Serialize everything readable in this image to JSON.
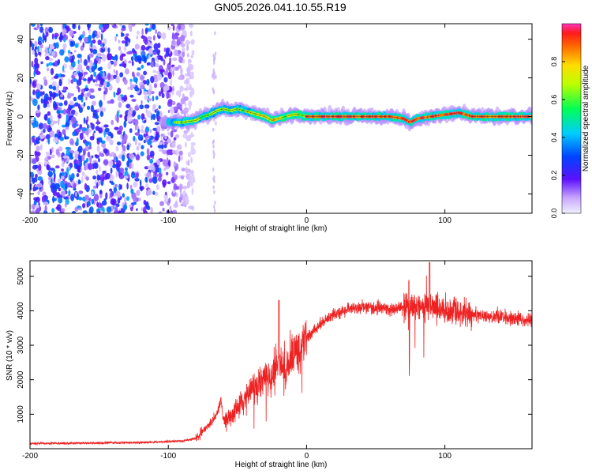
{
  "title": "GN05.2026.041.10.55.R19",
  "colors": {
    "signal_line": "#ee2222",
    "frame": "#000000",
    "background": "#ffffff"
  },
  "chart_data": [
    {
      "type": "heatmap",
      "title": "GN05.2026.041.10.55.R19",
      "xlabel": "Height of straight line (km)",
      "ylabel": "Frequency (Hz)",
      "xlim": [
        -200,
        163
      ],
      "ylim": [
        -50,
        48
      ],
      "xticks": [
        -200,
        -100,
        0,
        100
      ],
      "yticks": [
        -40,
        -20,
        0,
        20,
        40
      ],
      "colorbar": {
        "label": "Normalized spectral amplitude",
        "range": [
          0,
          1
        ],
        "ticks": [
          0.0,
          0.2,
          0.4,
          0.6,
          0.8
        ]
      },
      "noise_region_x": [
        -200,
        -82
      ],
      "frequency_track": {
        "x": [
          -100,
          -90,
          -80,
          -75,
          -70,
          -65,
          -60,
          -55,
          -50,
          -45,
          -40,
          -35,
          -30,
          -25,
          -20,
          -15,
          -10,
          -5,
          0,
          20,
          40,
          60,
          70,
          75,
          80,
          90,
          100,
          110,
          120,
          140,
          163
        ],
        "freq": [
          -3,
          -3,
          -2,
          0,
          1,
          3,
          4,
          3,
          4,
          3,
          2,
          1,
          0,
          -2,
          -1,
          0,
          1,
          1,
          0,
          0,
          0,
          0,
          -1,
          -3,
          -1,
          0,
          1,
          2,
          0,
          0,
          0
        ]
      }
    },
    {
      "type": "line",
      "xlabel": "Height of straight line (km)",
      "ylabel": "SNR (10 * v/v)",
      "xlim": [
        -200,
        163
      ],
      "ylim": [
        0,
        5450
      ],
      "xticks": [
        -200,
        -100,
        0,
        100
      ],
      "yticks": [
        1000,
        2000,
        3000,
        4000,
        5000
      ],
      "series": [
        {
          "name": "SNR",
          "x": [
            -200,
            -150,
            -120,
            -90,
            -80,
            -70,
            -65,
            -62,
            -60,
            -55,
            -50,
            -45,
            -40,
            -35,
            -30,
            -25,
            -20,
            -15,
            -10,
            -5,
            0,
            10,
            20,
            30,
            40,
            60,
            80,
            100,
            120,
            140,
            163
          ],
          "y": [
            150,
            170,
            180,
            220,
            300,
            700,
            1000,
            1400,
            800,
            900,
            1200,
            1400,
            1800,
            1700,
            2200,
            2000,
            2600,
            2300,
            2700,
            2900,
            3200,
            3600,
            3900,
            4050,
            4100,
            4050,
            4150,
            4000,
            3900,
            3800,
            3700
          ]
        }
      ]
    }
  ]
}
